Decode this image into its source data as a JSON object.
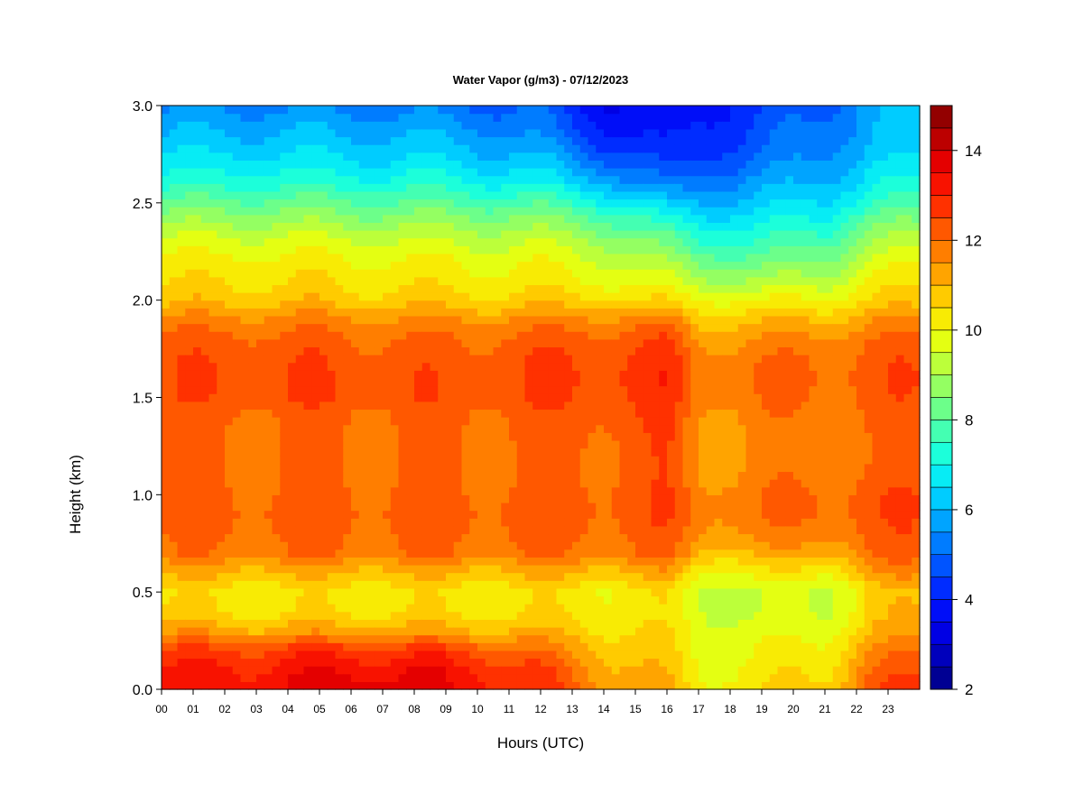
{
  "chart_data": {
    "type": "heatmap",
    "title": "Water Vapor (g/m3) - 07/12/2023",
    "xlabel": "Hours (UTC)",
    "ylabel": "Height (km)",
    "x_ticks": [
      "00",
      "01",
      "02",
      "03",
      "04",
      "05",
      "06",
      "07",
      "08",
      "09",
      "10",
      "11",
      "12",
      "13",
      "14",
      "15",
      "16",
      "17",
      "18",
      "19",
      "20",
      "21",
      "22",
      "23"
    ],
    "x_range": [
      0,
      24
    ],
    "y_ticks": [
      "0.0",
      "0.5",
      "1.0",
      "1.5",
      "2.0",
      "2.5",
      "3.0"
    ],
    "y_range": [
      0,
      3.0
    ],
    "colorbar": {
      "range": [
        2,
        15
      ],
      "ticks": [
        "2",
        "4",
        "6",
        "8",
        "10",
        "12",
        "14"
      ],
      "levels": 26,
      "colors": [
        "#00007f",
        "#0000b4",
        "#0000e8",
        "#0014ff",
        "#0048ff",
        "#007cff",
        "#00b0ff",
        "#00e4ff",
        "#18ffde",
        "#4cffaa",
        "#80ff76",
        "#b4ff42",
        "#e8ff0e",
        "#ffe200",
        "#ffb000",
        "#ff7e00",
        "#ff4c00",
        "#ff1a00",
        "#e80000",
        "#b40000",
        "#7f0000"
      ]
    },
    "profile_heights_km": [
      0.0,
      0.1,
      0.2,
      0.3,
      0.4,
      0.5,
      0.6,
      0.7,
      0.8,
      0.9,
      1.0,
      1.1,
      1.2,
      1.3,
      1.4,
      1.5,
      1.6,
      1.7,
      1.8,
      1.9,
      2.0,
      2.1,
      2.2,
      2.3,
      2.4,
      2.5,
      2.6,
      2.7,
      2.8,
      2.9,
      3.0
    ],
    "profiles": [
      {
        "hour": 0,
        "values": [
          13.2,
          13.0,
          12.6,
          11.4,
          10.6,
          10.4,
          11.0,
          11.8,
          12.0,
          12.1,
          12.1,
          12.0,
          12.0,
          12.0,
          12.1,
          12.3,
          12.4,
          12.3,
          12.1,
          11.6,
          10.8,
          10.4,
          10.1,
          9.6,
          8.9,
          8.1,
          7.3,
          6.7,
          6.2,
          5.8,
          5.4
        ]
      },
      {
        "hour": 3,
        "values": [
          13.4,
          13.1,
          12.6,
          11.2,
          10.4,
          10.3,
          11.0,
          11.9,
          12.1,
          12.2,
          12.1,
          12.0,
          12.0,
          12.0,
          12.1,
          12.4,
          12.5,
          12.4,
          12.2,
          11.7,
          10.9,
          10.5,
          10.2,
          9.7,
          9.0,
          8.2,
          7.4,
          6.8,
          6.3,
          5.9,
          5.4
        ]
      },
      {
        "hour": 6,
        "values": [
          13.9,
          13.5,
          12.8,
          11.3,
          10.4,
          10.3,
          11.0,
          11.9,
          12.1,
          12.2,
          12.1,
          12.0,
          12.0,
          12.0,
          12.1,
          12.4,
          12.4,
          12.3,
          12.1,
          11.6,
          10.8,
          10.4,
          10.1,
          9.6,
          8.9,
          8.1,
          7.3,
          6.7,
          6.2,
          5.8,
          5.3
        ]
      },
      {
        "hour": 9,
        "values": [
          13.6,
          13.3,
          12.7,
          11.2,
          10.4,
          10.3,
          11.0,
          11.9,
          12.1,
          12.2,
          12.1,
          12.0,
          12.0,
          12.0,
          12.1,
          12.3,
          12.3,
          12.2,
          12.0,
          11.5,
          10.7,
          10.3,
          10.0,
          9.5,
          8.8,
          8.0,
          7.2,
          6.6,
          6.1,
          5.7,
          5.2
        ]
      },
      {
        "hour": 12,
        "values": [
          12.8,
          12.5,
          11.9,
          11.0,
          10.4,
          10.3,
          11.0,
          11.9,
          12.1,
          12.2,
          12.1,
          12.0,
          12.0,
          12.1,
          12.2,
          12.4,
          12.5,
          12.4,
          12.2,
          11.6,
          10.7,
          10.2,
          9.9,
          9.4,
          8.7,
          7.8,
          6.9,
          6.2,
          5.6,
          5.1,
          4.8
        ]
      },
      {
        "hour": 14,
        "values": [
          11.6,
          11.3,
          11.0,
          10.6,
          10.3,
          10.2,
          11.0,
          11.9,
          12.1,
          12.2,
          12.2,
          12.1,
          12.1,
          12.2,
          12.3,
          12.5,
          12.6,
          12.5,
          12.3,
          11.7,
          10.6,
          10.0,
          9.6,
          9.0,
          8.2,
          7.2,
          6.1,
          5.2,
          4.5,
          4.0,
          3.7
        ]
      },
      {
        "hour": 16,
        "values": [
          11.0,
          10.8,
          10.6,
          10.4,
          10.2,
          10.3,
          11.1,
          12.0,
          12.2,
          12.4,
          12.4,
          12.3,
          12.3,
          12.4,
          12.5,
          12.7,
          12.8,
          12.7,
          12.4,
          11.7,
          10.4,
          9.6,
          9.0,
          8.2,
          7.3,
          6.2,
          5.1,
          4.3,
          3.9,
          3.6,
          3.4
        ]
      },
      {
        "hour": 17,
        "values": [
          10.2,
          10.0,
          9.9,
          9.8,
          9.6,
          9.6,
          10.2,
          11.1,
          11.6,
          11.8,
          11.7,
          11.5,
          11.5,
          11.5,
          11.6,
          11.8,
          11.9,
          11.8,
          11.4,
          10.9,
          10.1,
          9.2,
          8.4,
          7.6,
          6.8,
          6.0,
          5.3,
          4.7,
          4.3,
          4.1,
          3.9
        ]
      },
      {
        "hour": 19,
        "values": [
          10.4,
          10.2,
          10.0,
          9.7,
          9.4,
          9.4,
          10.1,
          11.0,
          11.6,
          11.9,
          11.9,
          11.7,
          11.6,
          11.6,
          11.7,
          11.9,
          12.0,
          11.9,
          11.5,
          10.9,
          10.0,
          9.0,
          8.2,
          7.5,
          6.9,
          6.3,
          5.7,
          5.2,
          4.8,
          4.6,
          4.4
        ]
      },
      {
        "hour": 21,
        "values": [
          10.7,
          10.5,
          10.2,
          9.8,
          9.5,
          9.5,
          10.2,
          11.2,
          11.8,
          12.1,
          12.1,
          11.9,
          11.8,
          11.8,
          11.9,
          12.0,
          12.1,
          12.0,
          11.7,
          11.0,
          10.1,
          9.3,
          8.6,
          7.9,
          7.2,
          6.6,
          6.1,
          5.7,
          5.4,
          5.2,
          5.0
        ]
      },
      {
        "hour": 22.5,
        "values": [
          12.4,
          12.0,
          11.6,
          11.0,
          10.7,
          10.6,
          11.3,
          12.0,
          12.2,
          12.3,
          12.3,
          12.1,
          12.0,
          12.0,
          12.1,
          12.2,
          12.3,
          12.2,
          12.0,
          11.4,
          10.6,
          10.1,
          9.6,
          9.0,
          8.3,
          7.5,
          6.9,
          6.4,
          6.1,
          5.9,
          5.8
        ]
      },
      {
        "hour": 24,
        "values": [
          12.6,
          12.3,
          11.9,
          11.3,
          10.9,
          10.8,
          11.5,
          12.1,
          12.3,
          12.4,
          12.4,
          12.2,
          12.1,
          12.1,
          12.2,
          12.3,
          12.4,
          12.3,
          12.1,
          11.5,
          10.7,
          10.2,
          9.8,
          9.2,
          8.5,
          7.7,
          7.0,
          6.5,
          6.2,
          6.0,
          5.9
        ]
      }
    ]
  }
}
